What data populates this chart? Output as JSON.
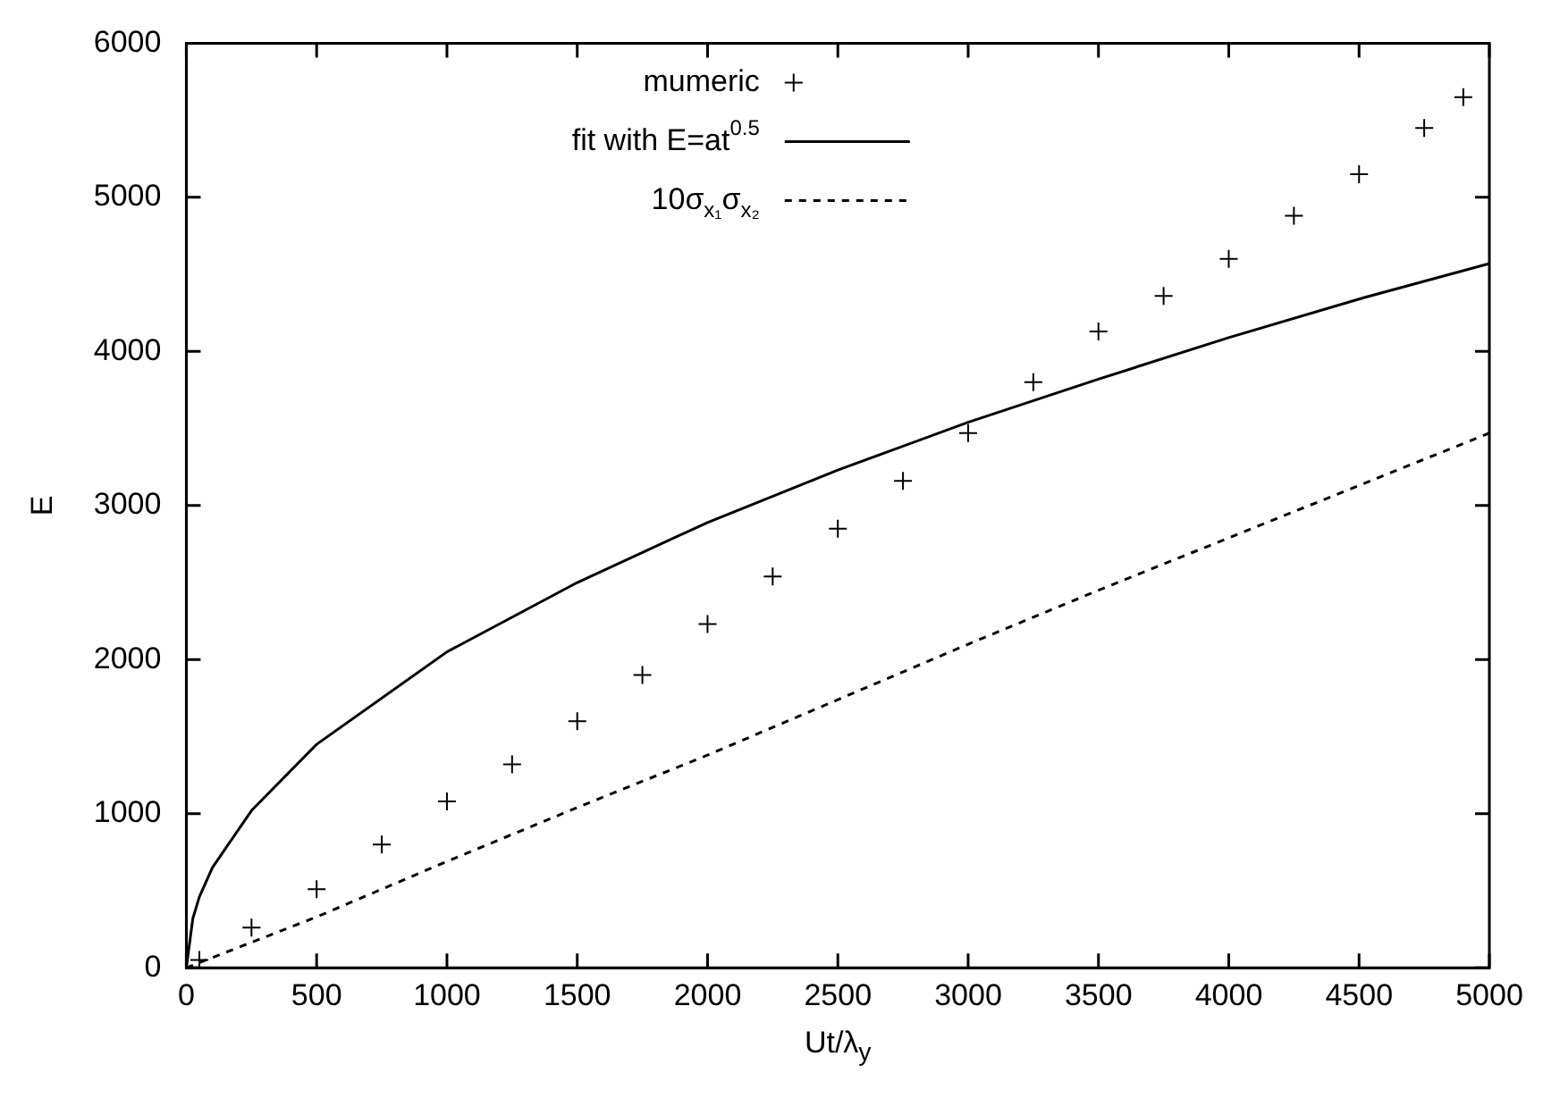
{
  "chart_data": {
    "type": "line",
    "xlabel": "Ut/λ$_{y}$",
    "ylabel": "E",
    "xlim": [
      0,
      5000
    ],
    "ylim": [
      0,
      6000
    ],
    "xticks": [
      0,
      500,
      1000,
      1500,
      2000,
      2500,
      3000,
      3500,
      4000,
      4500,
      5000
    ],
    "yticks": [
      0,
      1000,
      2000,
      3000,
      4000,
      5000,
      6000
    ],
    "grid": false,
    "legend": "top",
    "series": [
      {
        "name": "mumeric",
        "type": "scatter",
        "color": "#000000",
        "marker": "cross",
        "x": [
          50,
          250,
          500,
          750,
          1000,
          1250,
          1500,
          1750,
          2000,
          2250,
          2500,
          2750,
          3000,
          3250,
          3500,
          3750,
          4000,
          4250,
          4500,
          4750,
          4900
        ],
        "values": [
          50,
          260,
          510,
          800,
          1080,
          1320,
          1600,
          1900,
          2230,
          2540,
          2850,
          3160,
          3470,
          3800,
          4130,
          4360,
          4600,
          4880,
          5150,
          5450,
          5650
        ]
      },
      {
        "name": "fit with E=at$^{0.5}$",
        "type": "line",
        "color": "#000000",
        "line_style": "solid",
        "x": [
          0,
          25,
          50,
          100,
          250,
          500,
          1000,
          1500,
          2000,
          2500,
          3000,
          3500,
          4000,
          4500,
          5000
        ],
        "values": [
          0,
          320,
          460,
          650,
          1020,
          1450,
          2050,
          2500,
          2890,
          3230,
          3540,
          3820,
          4090,
          4340,
          4570
        ]
      },
      {
        "name": "10σ$_{x₁}$σ$_{x₂}$",
        "type": "line",
        "color": "#000000",
        "line_style": "dashed",
        "x": [
          0,
          500,
          1000,
          1500,
          2000,
          2500,
          3000,
          3500,
          4000,
          4500,
          5000
        ],
        "values": [
          0,
          330,
          690,
          1040,
          1380,
          1740,
          2100,
          2450,
          2790,
          3130,
          3470
        ]
      }
    ]
  }
}
